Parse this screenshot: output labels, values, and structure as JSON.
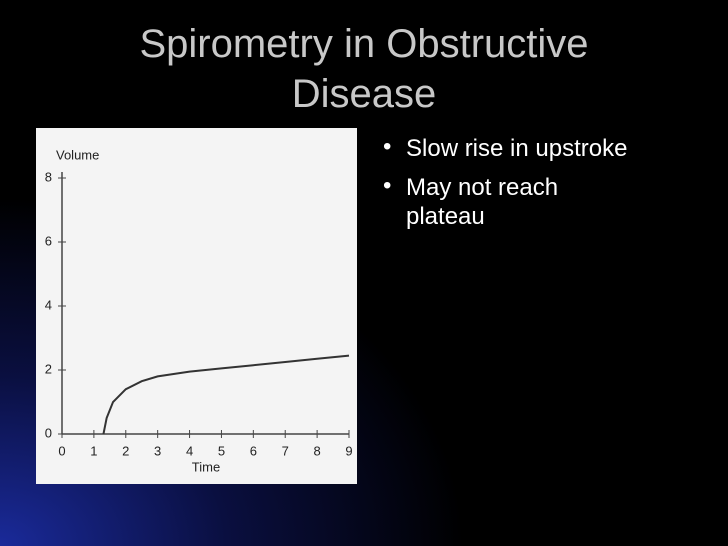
{
  "title": [
    "Spirometry in Obstructive",
    "Disease"
  ],
  "bullets": [
    "Slow rise in upstroke",
    "May not reach",
    "plateau"
  ],
  "chart_data": {
    "type": "line",
    "x_label": "Time",
    "y_label": "Volume",
    "x": [
      1.3,
      1.4,
      1.6,
      2,
      2.5,
      3,
      4,
      5,
      6,
      7,
      8,
      9
    ],
    "series": [
      {
        "color": "#333333",
        "values": [
          0,
          0.5,
          1,
          1.4,
          1.65,
          1.8,
          1.95,
          2.05,
          2.15,
          2.25,
          2.35,
          2.45
        ]
      }
    ],
    "xlim": [
      0,
      9
    ],
    "xticks": [
      0,
      1,
      2,
      3,
      4,
      5,
      6,
      7,
      8,
      9
    ],
    "ylim": [
      0,
      8
    ],
    "yticks": [
      0,
      2,
      4,
      6,
      8
    ]
  }
}
